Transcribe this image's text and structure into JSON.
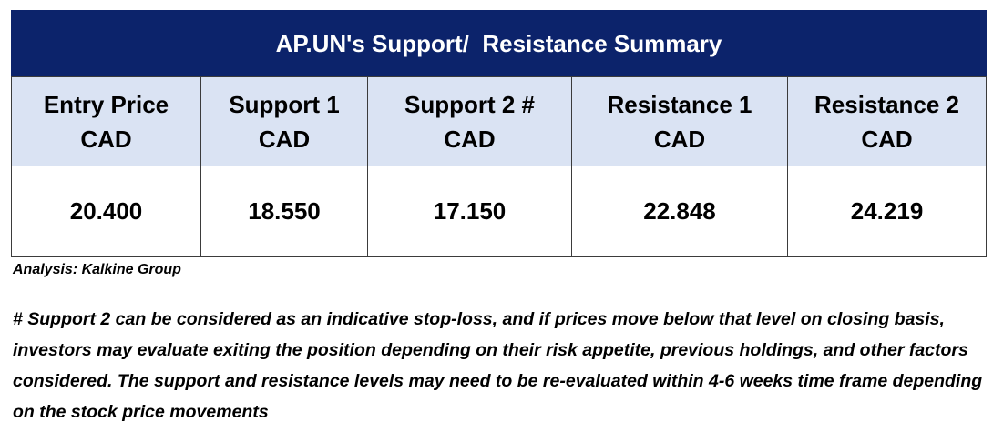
{
  "table": {
    "title": "AP.UN's Support/  Resistance Summary",
    "headers": [
      {
        "line1": "Entry Price",
        "line2": "CAD"
      },
      {
        "line1": "Support 1",
        "line2": "CAD"
      },
      {
        "line1": "Support 2 #",
        "line2": "CAD"
      },
      {
        "line1": "Resistance 1",
        "line2": "CAD"
      },
      {
        "line1": "Resistance 2",
        "line2": "CAD"
      }
    ],
    "values": [
      "20.400",
      "18.550",
      "17.150",
      "22.848",
      "24.219"
    ]
  },
  "source_note": "Analysis: Kalkine Group",
  "footnote": "# Support 2 can be considered as an indicative stop-loss, and if prices move below that level on closing basis, investors may evaluate exiting the position depending on their risk appetite, previous holdings, and other factors considered. The support and resistance levels may need to be re-evaluated within 4-6 weeks time frame depending on the stock price movements",
  "colors": {
    "title_background": "#0c236b",
    "title_text": "#ffffff",
    "header_background": "#dae3f3",
    "border": "#3b3b3b"
  }
}
